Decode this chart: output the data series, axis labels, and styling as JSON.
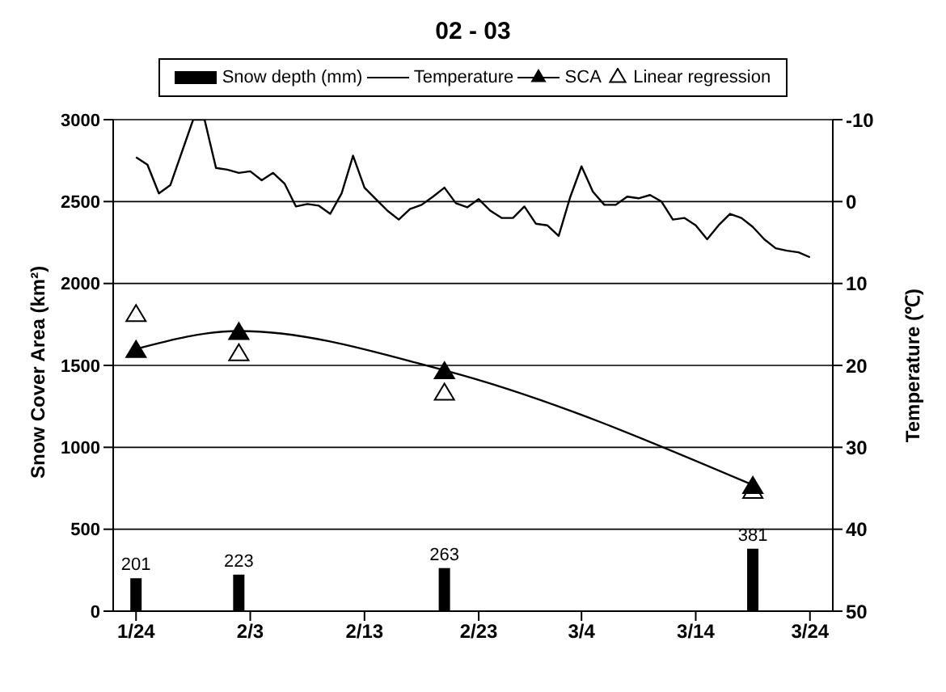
{
  "chart_data": {
    "type": "line",
    "title": "02 - 03",
    "ylabel": "Snow Cover Area (km²)",
    "y2label": "Temperature (℃)",
    "xlim": [
      "--01-22",
      "--03-26"
    ],
    "xticks": [
      {
        "value": "--01-24",
        "label": "1/24"
      },
      {
        "value": "--02-03",
        "label": "2/3"
      },
      {
        "value": "--02-13",
        "label": "2/13"
      },
      {
        "value": "--02-23",
        "label": "2/23"
      },
      {
        "value": "--03-04",
        "label": "3/4"
      },
      {
        "value": "--03-14",
        "label": "3/14"
      },
      {
        "value": "--03-24",
        "label": "3/24"
      }
    ],
    "ylim": [
      0,
      3000
    ],
    "yticks": [
      0,
      500,
      1000,
      1500,
      2000,
      2500,
      3000
    ],
    "y2lim": [
      50,
      -10
    ],
    "y2ticks": [
      -10,
      0,
      10,
      20,
      30,
      40,
      50
    ],
    "grid": "y",
    "legend": "top",
    "series": [
      {
        "name": "Snow depth (mm)",
        "type": "bar",
        "color": "#000000",
        "x": [
          "--01-24",
          "--02-02",
          "--02-20",
          "--03-19"
        ],
        "values": [
          201,
          223,
          263,
          381
        ],
        "value_labels": [
          "201",
          "223",
          "263",
          "381"
        ]
      },
      {
        "name": "Temperature",
        "axis": "y2",
        "color": "#000000",
        "marker": "none",
        "line_style": "solid",
        "x": [
          "--01-24",
          "--01-25",
          "--01-26",
          "--01-27",
          "--01-29",
          "--01-30",
          "--01-31",
          "--02-01",
          "--02-02",
          "--02-03",
          "--02-04",
          "--02-05",
          "--02-06",
          "--02-07",
          "--02-08",
          "--02-09",
          "--02-10",
          "--02-11",
          "--02-12",
          "--02-13",
          "--02-14",
          "--02-15",
          "--02-16",
          "--02-17",
          "--02-18",
          "--02-19",
          "--02-20",
          "--02-21",
          "--02-22",
          "--02-23",
          "--02-24",
          "--02-25",
          "--02-26",
          "--02-27",
          "--02-28",
          "--03-01",
          "--03-02",
          "--03-03",
          "--03-04",
          "--03-05",
          "--03-06",
          "--03-07",
          "--03-08",
          "--03-09",
          "--03-10",
          "--03-11",
          "--03-12",
          "--03-13",
          "--03-14",
          "--03-15",
          "--03-16",
          "--03-17",
          "--03-18",
          "--03-19",
          "--03-20",
          "--03-21",
          "--03-22",
          "--03-23",
          "--03-24"
        ],
        "values": [
          -5.4,
          -4.5,
          -1.0,
          -2.0,
          -10,
          -10,
          -4.1,
          -3.9,
          -3.5,
          -3.7,
          -2.6,
          -3.5,
          -2.2,
          0.6,
          0.3,
          0.5,
          1.5,
          -1.0,
          -5.6,
          -1.7,
          -0.3,
          1.1,
          2.2,
          0.9,
          0.4,
          -0.6,
          -1.7,
          0.2,
          0.7,
          -0.3,
          1.1,
          2.0,
          2.0,
          0.6,
          2.7,
          2.9,
          4.2,
          -0.5,
          -4.3,
          -1.2,
          0.4,
          0.4,
          -0.6,
          -0.4,
          -0.8,
          0,
          2.2,
          2.0,
          2.9,
          4.6,
          2.9,
          1.5,
          2.0,
          3.1,
          4.6,
          5.7,
          6.0,
          6.2,
          6.8
        ]
      },
      {
        "name": "SCA",
        "color": "#000000",
        "marker": "triangle",
        "line_style": "solid",
        "x": [
          "--01-24",
          "--02-02",
          "--02-20",
          "--03-19"
        ],
        "values": [
          1600,
          1710,
          1470,
          770
        ]
      },
      {
        "name": "Linear regression",
        "type": "scatter",
        "color": "#000000",
        "marker": "triangle",
        "x": [
          "--01-24",
          "--02-02",
          "--02-20",
          "--03-19"
        ],
        "values": [
          1820,
          1580,
          1340,
          740
        ]
      }
    ]
  }
}
